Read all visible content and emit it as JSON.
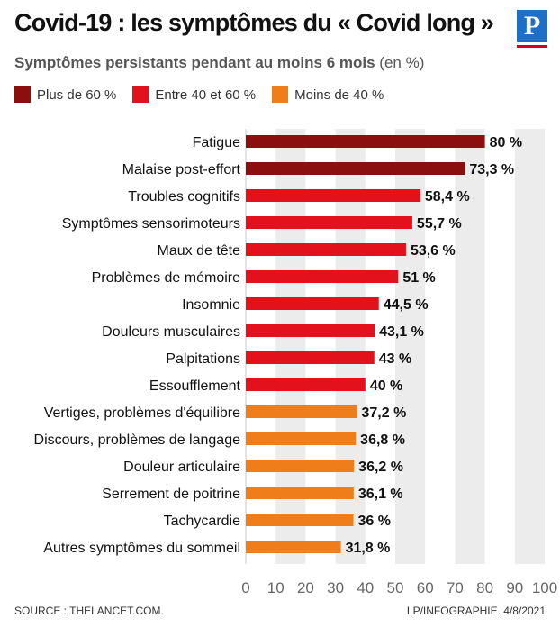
{
  "header": {
    "title": "Covid-19 : les symptômes du « Covid long »",
    "logo": "P",
    "subtitle_main": "Symptômes persistants pendant au moins 6 mois",
    "subtitle_unit": "(en %)"
  },
  "legend": [
    {
      "label": "Plus de 60 %",
      "color": "#8b0f0f"
    },
    {
      "label": "Entre 40 et 60 %",
      "color": "#e3111b"
    },
    {
      "label": "Moins de 40 %",
      "color": "#ee7d1a"
    }
  ],
  "chart_data": {
    "type": "bar",
    "orientation": "horizontal",
    "categories": [
      "Fatigue",
      "Malaise post-effort",
      "Troubles cognitifs",
      "Symptômes sensorimoteurs",
      "Maux de tête",
      "Problèmes de mémoire",
      "Insomnie",
      "Douleurs musculaires",
      "Palpitations",
      "Essoufflement",
      "Vertiges, problèmes d'équilibre",
      "Discours, problèmes de langage",
      "Douleur articulaire",
      "Serrement de poitrine",
      "Tachycardie",
      "Autres symptômes du sommeil"
    ],
    "values": [
      80,
      73.3,
      58.4,
      55.7,
      53.6,
      51,
      44.5,
      43.1,
      43,
      40,
      37.2,
      36.8,
      36.2,
      36.1,
      36,
      31.8
    ],
    "value_labels": [
      "80 %",
      "73,3 %",
      "58,4 %",
      "55,7 %",
      "53,6 %",
      "51 %",
      "44,5 %",
      "43,1 %",
      "43 %",
      "40 %",
      "37,2 %",
      "36,8 %",
      "36,2 %",
      "36,1 %",
      "36 %",
      "31,8 %"
    ],
    "groups": [
      0,
      0,
      1,
      1,
      1,
      1,
      1,
      1,
      1,
      1,
      2,
      2,
      2,
      2,
      2,
      2
    ],
    "xlim": [
      0,
      100
    ],
    "xticks": [
      "0",
      "10",
      "20",
      "30",
      "40",
      "50",
      "60",
      "70",
      "80",
      "90",
      "100"
    ],
    "grid": "alternating vertical bands",
    "band_color": "#ececec"
  },
  "footer": {
    "source": "SOURCE : THELANCET.COM.",
    "credit": "LP/INFOGRAPHIE.  4/8/2021"
  }
}
